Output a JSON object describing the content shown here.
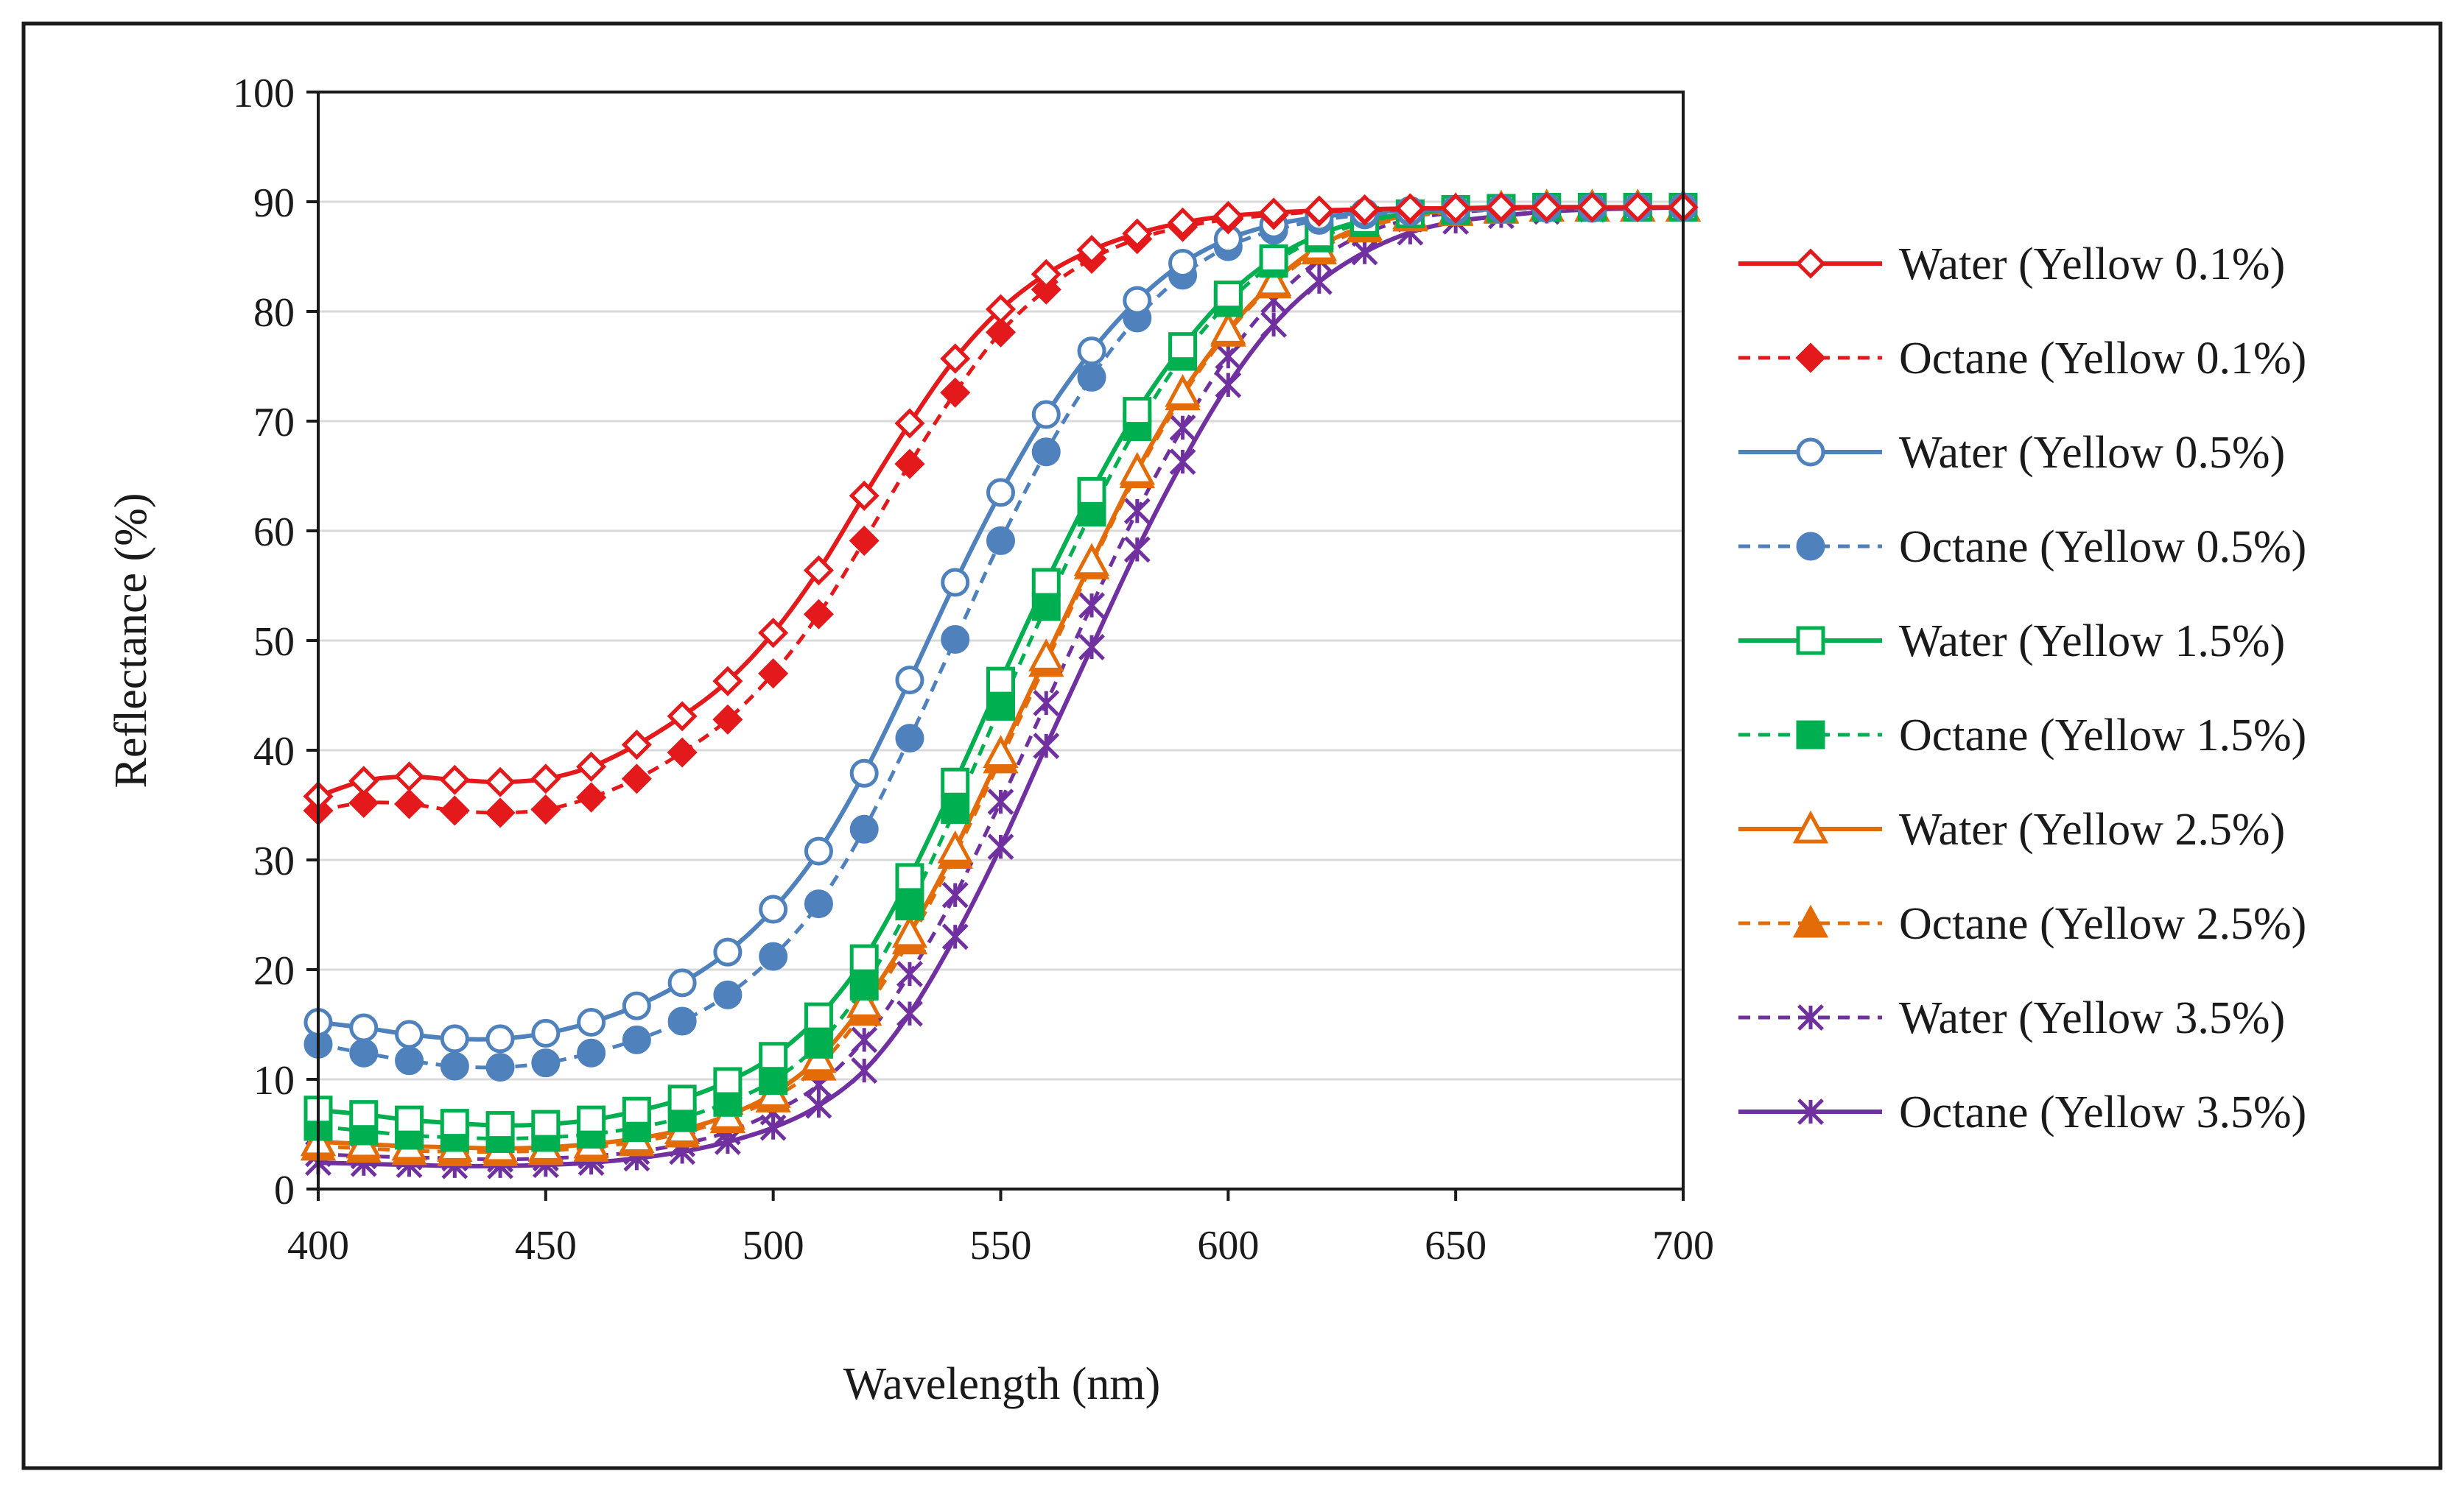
{
  "chart_data": {
    "type": "line",
    "title": "",
    "xlabel": "Wavelength (nm)",
    "ylabel": "Reflectance (%)",
    "xlim": [
      400,
      700
    ],
    "ylim": [
      0,
      100
    ],
    "xticks": [
      400,
      450,
      500,
      550,
      600,
      650,
      700
    ],
    "yticks": [
      0,
      10,
      20,
      30,
      40,
      50,
      60,
      70,
      80,
      90,
      100
    ],
    "legend_position": "right",
    "x": [
      400,
      410,
      420,
      430,
      440,
      450,
      460,
      470,
      480,
      490,
      500,
      510,
      520,
      530,
      540,
      550,
      560,
      570,
      580,
      590,
      600,
      610,
      620,
      630,
      640,
      650,
      660,
      670,
      680,
      690,
      700
    ],
    "series": [
      {
        "name": "Water (Yellow 0.1%)",
        "color": "#e3191c",
        "dash": "solid",
        "marker": "diamond-open",
        "values": [
          35.8,
          37.2,
          37.6,
          37.3,
          37.1,
          37.4,
          38.5,
          40.5,
          43.1,
          46.3,
          50.7,
          56.4,
          63.2,
          69.8,
          75.7,
          80.2,
          83.4,
          85.6,
          87.1,
          88.1,
          88.7,
          89.0,
          89.2,
          89.3,
          89.4,
          89.4,
          89.5,
          89.5,
          89.5,
          89.5,
          89.5
        ]
      },
      {
        "name": "Octane (Yellow 0.1%)",
        "color": "#e3191c",
        "dash": "dashed",
        "marker": "diamond-filled",
        "values": [
          34.5,
          35.2,
          35.1,
          34.5,
          34.3,
          34.6,
          35.7,
          37.4,
          39.8,
          42.8,
          47.0,
          52.4,
          59.1,
          66.1,
          72.6,
          78.1,
          82.0,
          84.8,
          86.6,
          87.7,
          88.4,
          88.8,
          89.1,
          89.2,
          89.3,
          89.4,
          89.4,
          89.5,
          89.5,
          89.5,
          89.5
        ]
      },
      {
        "name": "Water (Yellow 0.5%)",
        "color": "#4f81bd",
        "dash": "solid",
        "marker": "circle-open",
        "values": [
          15.2,
          14.7,
          14.1,
          13.7,
          13.7,
          14.2,
          15.2,
          16.7,
          18.8,
          21.6,
          25.5,
          30.8,
          37.9,
          46.4,
          55.3,
          63.5,
          70.6,
          76.4,
          81.0,
          84.4,
          86.6,
          87.9,
          88.6,
          89.0,
          89.2,
          89.3,
          89.4,
          89.5,
          89.5,
          89.5,
          89.5
        ]
      },
      {
        "name": "Octane (Yellow 0.5%)",
        "color": "#4f81bd",
        "dash": "dashed",
        "marker": "circle-filled",
        "values": [
          13.2,
          12.4,
          11.7,
          11.2,
          11.1,
          11.5,
          12.4,
          13.6,
          15.3,
          17.7,
          21.2,
          26.0,
          32.8,
          41.1,
          50.1,
          59.1,
          67.2,
          74.0,
          79.4,
          83.3,
          85.9,
          87.4,
          88.3,
          88.8,
          89.1,
          89.2,
          89.3,
          89.4,
          89.4,
          89.5,
          89.5
        ]
      },
      {
        "name": "Water (Yellow 1.5%)",
        "color": "#00b050",
        "dash": "solid",
        "marker": "square-open",
        "values": [
          7.2,
          6.8,
          6.3,
          6.0,
          5.8,
          5.9,
          6.3,
          7.1,
          8.2,
          9.8,
          12.1,
          15.7,
          21.0,
          28.4,
          37.1,
          46.3,
          55.3,
          63.6,
          70.9,
          76.8,
          81.5,
          84.8,
          87.0,
          88.3,
          88.9,
          89.3,
          89.4,
          89.5,
          89.5,
          89.5,
          89.5
        ]
      },
      {
        "name": "Octane (Yellow 1.5%)",
        "color": "#00b050",
        "dash": "dashed",
        "marker": "square-filled",
        "values": [
          5.7,
          5.3,
          4.9,
          4.7,
          4.6,
          4.7,
          5.0,
          5.6,
          6.5,
          7.9,
          9.9,
          13.2,
          18.5,
          25.8,
          34.6,
          44.0,
          53.1,
          61.7,
          69.5,
          75.9,
          80.8,
          84.4,
          86.7,
          88.1,
          88.9,
          89.2,
          89.4,
          89.5,
          89.5,
          89.5,
          89.5
        ]
      },
      {
        "name": "Water (Yellow 2.5%)",
        "color": "#e36c09",
        "dash": "solid",
        "marker": "triangle-open",
        "values": [
          4.3,
          4.1,
          3.9,
          3.8,
          3.7,
          3.8,
          4.1,
          4.6,
          5.4,
          6.7,
          8.7,
          11.9,
          16.9,
          23.3,
          31.0,
          39.7,
          48.5,
          57.2,
          65.5,
          72.6,
          78.3,
          82.7,
          85.9,
          87.8,
          88.8,
          89.2,
          89.4,
          89.5,
          89.5,
          89.5,
          89.5
        ]
      },
      {
        "name": "Octane (Yellow 2.5%)",
        "color": "#e36c09",
        "dash": "dashed",
        "marker": "triangle-filled",
        "values": [
          3.9,
          3.7,
          3.5,
          3.4,
          3.4,
          3.5,
          3.8,
          4.3,
          5.1,
          6.4,
          8.3,
          11.2,
          16.2,
          22.7,
          30.5,
          39.2,
          48.0,
          56.9,
          65.2,
          72.3,
          78.1,
          82.5,
          85.6,
          87.6,
          88.6,
          89.1,
          89.3,
          89.5,
          89.5,
          89.5,
          89.5
        ]
      },
      {
        "name": "Water (Yellow 3.5%)",
        "color": "#7030a0",
        "dash": "dashed",
        "marker": "x-star",
        "values": [
          3.2,
          3.0,
          2.9,
          2.8,
          2.7,
          2.8,
          3.0,
          3.4,
          4.1,
          5.2,
          7.0,
          9.5,
          13.6,
          19.6,
          26.8,
          35.3,
          44.3,
          53.2,
          61.8,
          69.4,
          75.9,
          81.0,
          84.7,
          87.1,
          88.4,
          89.0,
          89.3,
          89.4,
          89.5,
          89.5,
          89.5
        ]
      },
      {
        "name": "Octane (Yellow 3.5%)",
        "color": "#7030a0",
        "dash": "solid",
        "marker": "x-star",
        "values": [
          2.4,
          2.3,
          2.2,
          2.1,
          2.1,
          2.2,
          2.4,
          2.8,
          3.4,
          4.3,
          5.6,
          7.6,
          10.8,
          16.0,
          23.0,
          31.2,
          40.4,
          49.4,
          58.3,
          66.3,
          73.3,
          78.8,
          82.7,
          85.4,
          87.2,
          88.2,
          88.7,
          89.1,
          89.3,
          89.4,
          89.5
        ]
      }
    ]
  }
}
